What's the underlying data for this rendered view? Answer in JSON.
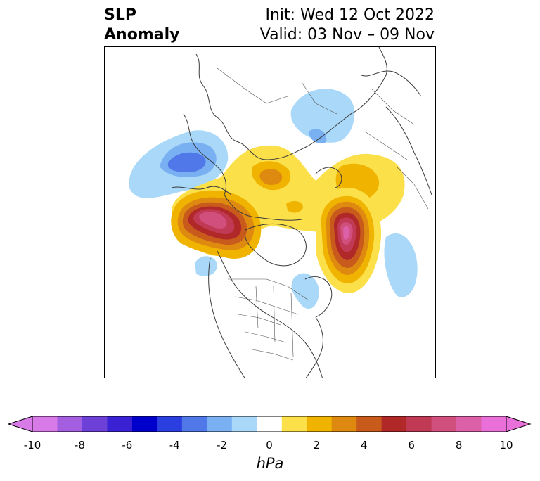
{
  "header": {
    "title_line1": "SLP",
    "title_line2": "Anomaly",
    "init_text": "Init: Wed 12 Oct 2022",
    "valid_text": "Valid: 03 Nov – 09 Nov"
  },
  "map": {
    "projection": "polar stereographic",
    "coastline_color": "#3a3a3a",
    "region": "Northern Hemisphere"
  },
  "colorbar": {
    "units": "hPa",
    "tick_labels": [
      "-10",
      "-8",
      "-6",
      "-4",
      "-2",
      "0",
      "2",
      "4",
      "6",
      "8",
      "10"
    ],
    "extend": "both",
    "bins": [
      {
        "range": "-10 to -9",
        "color": "#d87ae8"
      },
      {
        "range": "-9 to -8",
        "color": "#a45ee0"
      },
      {
        "range": "-8 to -7",
        "color": "#6d40d8"
      },
      {
        "range": "-7 to -6",
        "color": "#3a22d4"
      },
      {
        "range": "-6 to -5",
        "color": "#0000cc"
      },
      {
        "range": "-5 to -4",
        "color": "#2b3ee0"
      },
      {
        "range": "-4 to -3",
        "color": "#5078e8"
      },
      {
        "range": "-3 to -2",
        "color": "#79b0f2"
      },
      {
        "range": "-2 to -1",
        "color": "#a9d8f8"
      },
      {
        "range": "-1 to 1",
        "color": "#ffffff"
      },
      {
        "range": "1 to 2",
        "color": "#fbe04a"
      },
      {
        "range": "2 to 3",
        "color": "#f0b400"
      },
      {
        "range": "3 to 4",
        "color": "#de8a10"
      },
      {
        "range": "4 to 5",
        "color": "#c85a1c"
      },
      {
        "range": "5 to 6",
        "color": "#b02828"
      },
      {
        "range": "6 to 7",
        "color": "#c03a56"
      },
      {
        "range": "7 to 8",
        "color": "#d04f7c"
      },
      {
        "range": "8 to 9",
        "color": "#dc60a8"
      },
      {
        "range": "9 to 10",
        "color": "#e870d8"
      }
    ],
    "extend_low_color": "#d87ae8",
    "extend_high_color": "#e870d8"
  }
}
